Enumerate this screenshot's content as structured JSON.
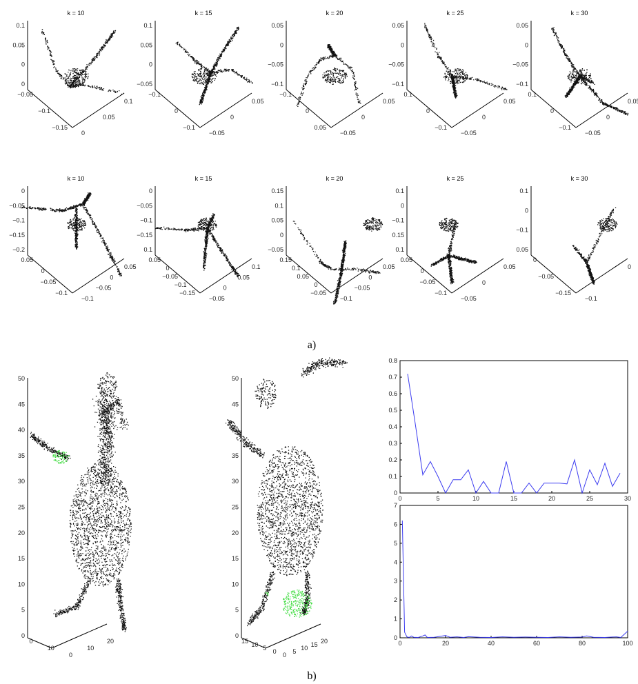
{
  "figure": {
    "caption_a": "a)",
    "caption_b": "b)"
  },
  "panel_a": {
    "row1": [
      {
        "title": "k = 10",
        "ticks": [
          "0.1",
          "0.05",
          "0",
          "0",
          "−0.05",
          "−0.1",
          "−0.15",
          "0",
          "0.05",
          "0.1"
        ]
      },
      {
        "title": "k = 15",
        "ticks": [
          "0.1",
          "0.05",
          "0",
          "−0.05",
          "−0.1",
          "0",
          "−0.1",
          "−0.05",
          "0",
          "0.05"
        ]
      },
      {
        "title": "k = 20",
        "ticks": [
          "0.05",
          "0",
          "−0.05",
          "−0.1",
          "−0.1",
          "0",
          "0.05",
          "−0.05",
          "0",
          "0.05"
        ]
      },
      {
        "title": "k = 25",
        "ticks": [
          "0.05",
          "0",
          "−0.05",
          "−0.1",
          "0.1",
          "0",
          "−0.1",
          "−0.05",
          "0",
          "0.05"
        ]
      },
      {
        "title": "k = 30",
        "ticks": [
          "0.05",
          "0",
          "−0.05",
          "−0.1",
          "0.1",
          "0",
          "−0.1",
          "−0.05",
          "0",
          "0.05"
        ]
      }
    ],
    "row2": [
      {
        "title": "k = 10",
        "ticks": [
          "0",
          "−0.05",
          "−0.1",
          "−0.15",
          "−0.2",
          "0.05",
          "0",
          "−0.05",
          "−0.1",
          "−0.1",
          "−0.05",
          "0",
          "0.05"
        ]
      },
      {
        "title": "k = 15",
        "ticks": [
          "0",
          "−0.05",
          "−0.1",
          "−0.15",
          "0.1",
          "0.05",
          "0",
          "−0.05",
          "−0.1",
          "−0.15",
          "−0.05",
          "0",
          "0.05",
          "0.1"
        ]
      },
      {
        "title": "k = 20",
        "ticks": [
          "0.15",
          "0.1",
          "0.05",
          "0",
          "−0.05",
          "0.15",
          "0.1",
          "0.05",
          "0",
          "−0.05",
          "−0.1",
          "−0.05",
          "0",
          "0.05"
        ]
      },
      {
        "title": "k = 25",
        "ticks": [
          "0.1",
          "0",
          "−0.1",
          "0.15",
          "0.1",
          "0.05",
          "0",
          "−0.05",
          "−0.1",
          "−0.05",
          "0",
          "0.05"
        ]
      },
      {
        "title": "k = 30",
        "ticks": [
          "0.1",
          "0",
          "−0.1",
          "0.05",
          "0",
          "−0.05",
          "−0.15",
          "−0.1",
          "0"
        ]
      }
    ]
  },
  "panel_b": {
    "figure1_yticks": [
      "50",
      "45",
      "40",
      "35",
      "30",
      "25",
      "20",
      "15",
      "10",
      "5",
      "0"
    ],
    "figure1_xticks": [
      "0",
      "10",
      "0",
      "10",
      "20"
    ],
    "figure2_yticks": [
      "50",
      "45",
      "40",
      "35",
      "30",
      "25",
      "20",
      "15",
      "10",
      "5",
      "0"
    ],
    "figure2_xticks": [
      "15",
      "10",
      "5",
      "0",
      "0",
      "5",
      "10",
      "15",
      "20"
    ],
    "highlight_color": "#44dd44"
  },
  "chart_data": [
    {
      "type": "line",
      "x": [
        1,
        2,
        3,
        4,
        5,
        6,
        7,
        8,
        9,
        10,
        11,
        12,
        13,
        14,
        15,
        16,
        17,
        18,
        19,
        20,
        21,
        22,
        23,
        24,
        25,
        26,
        27,
        28,
        29
      ],
      "series": [
        {
          "values": [
            0.72,
            0.42,
            0.11,
            0.19,
            0.1,
            0.0,
            0.08,
            0.08,
            0.14,
            0.0,
            0.07,
            0.0,
            0.0,
            0.19,
            0.0,
            0.0,
            0.06,
            0.0,
            0.06,
            0.06,
            0.06,
            0.055,
            0.2,
            0.0,
            0.14,
            0.05,
            0.18,
            0.04,
            0.12
          ]
        }
      ],
      "xticks": [
        "0",
        "5",
        "10",
        "15",
        "20",
        "25",
        "30"
      ],
      "yticks": [
        "0",
        "0.1",
        "0.2",
        "0.3",
        "0.4",
        "0.5",
        "0.6",
        "0.7",
        "0.8"
      ],
      "xlim": [
        0,
        30
      ],
      "ylim": [
        0,
        0.8
      ],
      "line_color": "#3b3bf0"
    },
    {
      "type": "line",
      "x": [
        1,
        2,
        3,
        4,
        5,
        6,
        8,
        10,
        11,
        12,
        15,
        20,
        22,
        25,
        28,
        30,
        35,
        40,
        45,
        50,
        55,
        60,
        65,
        70,
        75,
        80,
        82,
        85,
        90,
        95,
        97,
        100
      ],
      "series": [
        {
          "values": [
            6.2,
            0.3,
            0.05,
            0.02,
            0.1,
            0.03,
            0.02,
            0.1,
            0.15,
            0.02,
            0.03,
            0.12,
            0.03,
            0.05,
            0.02,
            0.06,
            0.03,
            0.02,
            0.05,
            0.03,
            0.04,
            0.03,
            0.02,
            0.05,
            0.03,
            0.04,
            0.1,
            0.03,
            0.02,
            0.05,
            0.02,
            0.35
          ]
        }
      ],
      "xticks": [
        "0",
        "20",
        "40",
        "60",
        "80",
        "100"
      ],
      "yticks": [
        "0",
        "1",
        "2",
        "3",
        "4",
        "5",
        "6",
        "7"
      ],
      "xlim": [
        0,
        100
      ],
      "ylim": [
        0,
        7
      ],
      "line_color": "#3b3bf0"
    }
  ]
}
